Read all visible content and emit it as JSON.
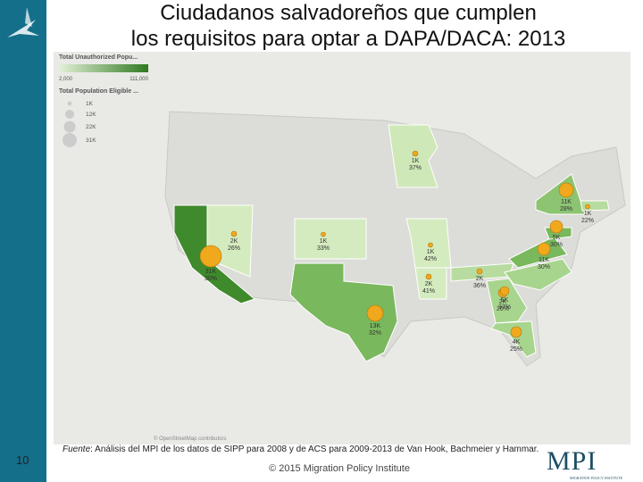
{
  "header": {
    "title_lines": [
      "Ciudadanos salvadoreños que cumplen",
      "los requisitos para optar a DAPA/DACA: 2013"
    ]
  },
  "legend": {
    "color_title": "Total Unauthorized Popu...",
    "color_min": "2,000",
    "color_max": "111,000",
    "size_title": "Total Population Eligible ...",
    "sizes": [
      "1K",
      "12K",
      "22K",
      "31K"
    ]
  },
  "states": [
    {
      "name": "Minnesota",
      "count": "1K",
      "share": "37%"
    },
    {
      "name": "Nevada",
      "count": "2K",
      "share": "26%"
    },
    {
      "name": "Kansas",
      "count": "1K",
      "share": "33%"
    },
    {
      "name": "Missouri",
      "count": "1K",
      "share": "42%"
    },
    {
      "name": "California",
      "count": "31K",
      "share": "30%"
    },
    {
      "name": "Texas",
      "count": "13K",
      "share": "32%"
    },
    {
      "name": "Tennessee",
      "count": "2K",
      "share": "36%"
    },
    {
      "name": "Arkansas",
      "count": "2K",
      "share": "41%"
    },
    {
      "name": "Georgia",
      "count": "2K",
      "share": "26%"
    },
    {
      "name": "Florida",
      "count": "4K",
      "share": "25%"
    },
    {
      "name": "North Carolina",
      "count": "5K",
      "share": "37%"
    },
    {
      "name": "Virginia",
      "count": "11K",
      "share": "30%"
    },
    {
      "name": "Maryland",
      "count": "5K",
      "share": "30%"
    },
    {
      "name": "New York",
      "count": "11K",
      "share": "28%"
    },
    {
      "name": "Massachusetts",
      "count": "1K",
      "share": "22%"
    }
  ],
  "map_attribution": "© OpenStreetMap contributors",
  "source": {
    "lead": "Fuente",
    "text": ": Análisis del MPI de los datos de SIPP para 2008 y de ACS para 2009-2013 de Van Hook, Bachmeier y Hammar."
  },
  "footer": {
    "copyright": "© 2015 Migration Policy Institute",
    "page": "10",
    "logo": "MPI",
    "logo_sub": "MIGRATION POLICY INSTITUTE"
  }
}
